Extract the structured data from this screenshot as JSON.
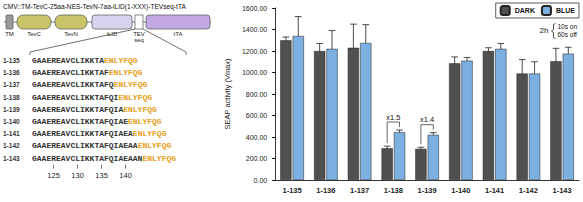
{
  "chart_data": {
    "type": "bar",
    "categories": [
      "1-135",
      "1-136",
      "1-137",
      "1-138",
      "1-139",
      "1-140",
      "1-141",
      "1-142",
      "1-143"
    ],
    "series": [
      {
        "name": "DARK",
        "color": "#505050",
        "values": [
          1300,
          1200,
          1230,
          295,
          290,
          1085,
          1200,
          990,
          1105
        ],
        "errors": [
          30,
          70,
          220,
          20,
          15,
          60,
          30,
          130,
          120
        ]
      },
      {
        "name": "BLUE",
        "color": "#7bb0e0",
        "values": [
          1340,
          1220,
          1275,
          445,
          420,
          1110,
          1220,
          990,
          1175
        ],
        "errors": [
          180,
          170,
          170,
          20,
          20,
          30,
          50,
          110,
          60
        ]
      }
    ],
    "y_label": "SEAP activity (Vmax)",
    "ylim": [
      0,
      1600
    ],
    "yticks": [
      {
        "value": 0,
        "label": "0.00"
      },
      {
        "value": 200,
        "label": "200.00"
      },
      {
        "value": 400,
        "label": "400.00"
      },
      {
        "value": 600,
        "label": "600.00"
      },
      {
        "value": 800,
        "label": "800.00"
      },
      {
        "value": 1000,
        "label": "1000.00"
      },
      {
        "value": 1200,
        "label": "1200.00"
      },
      {
        "value": 1400,
        "label": "1400.00"
      },
      {
        "value": 1600,
        "label": "1600.00"
      }
    ],
    "grid": false,
    "legend": "top-right",
    "annotations": [
      {
        "category": "1-138",
        "text": "x1.5"
      },
      {
        "category": "1-139",
        "text": "x1.4"
      }
    ],
    "legend_note": {
      "title": "2h",
      "lines": [
        "10s on",
        "60s off"
      ]
    }
  },
  "diagram": {
    "construct": "CMV::TM-TevC-25aa-NES-TevN-7aa-iLID(1-XXX)-TEVseq-tTA",
    "domains": [
      "TM",
      "TevC",
      "TevN",
      "iLID",
      "TEV seq",
      "tTA"
    ],
    "sequences": [
      {
        "name": "1-135",
        "core": "GAAEREAVCLIKKTA",
        "tail": "ENLYFQG"
      },
      {
        "name": "1-136",
        "core": "GAAEREAVCLIKKTAF",
        "tail": "ENLYFQG"
      },
      {
        "name": "1-137",
        "core": "GAAEREAVCLIKKTAFQ",
        "tail": "ENLYFQG"
      },
      {
        "name": "1-138",
        "core": "GAAEREAVCLIKKTAFQI",
        "tail": "ENLYFQG"
      },
      {
        "name": "1-139",
        "core": "GAAEREAVCLIKKTAFQIA",
        "tail": "ENLYFQG"
      },
      {
        "name": "1-140",
        "core": "GAAEREAVCLIKKTAFQIAE",
        "tail": "ENLYFQG"
      },
      {
        "name": "1-141",
        "core": "GAAEREAVCLIKKTAFQIAEA",
        "tail": "ENLYFQG"
      },
      {
        "name": "1-142",
        "core": "GAAEREAVCLIKKTAFQIAEAA",
        "tail": "ENLYFQG"
      },
      {
        "name": "1-143",
        "core": "GAAEREAVCLIKKTAFQIAEAAN",
        "tail": "ENLYFQG"
      }
    ],
    "positions": [
      125,
      130,
      135,
      140
    ]
  }
}
